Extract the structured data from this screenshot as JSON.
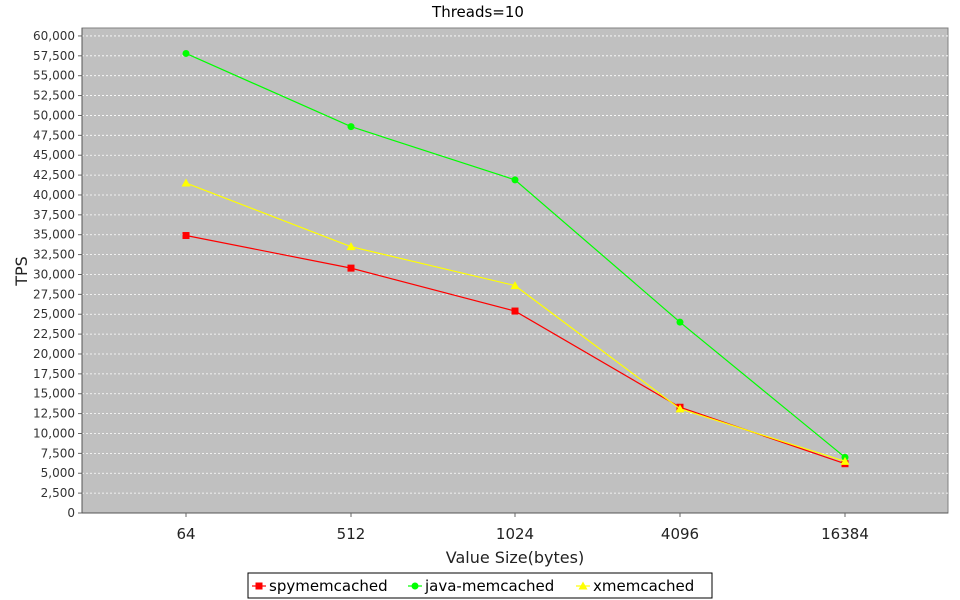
{
  "chart_data": {
    "type": "line",
    "title": "Threads=10",
    "xlabel": "Value Size(bytes)",
    "ylabel": "TPS",
    "categories": [
      "64",
      "512",
      "1024",
      "4096",
      "16384"
    ],
    "ylim": [
      0,
      61000
    ],
    "yticks": [
      0,
      2500,
      5000,
      7500,
      10000,
      12500,
      15000,
      17500,
      20000,
      22500,
      25000,
      27500,
      30000,
      32500,
      35000,
      37500,
      40000,
      42500,
      45000,
      47500,
      50000,
      52500,
      55000,
      57500,
      60000
    ],
    "ytick_labels": [
      "0",
      "2,500",
      "5,000",
      "7,500",
      "10,000",
      "12,500",
      "15,000",
      "17,500",
      "20,000",
      "22,500",
      "25,000",
      "27,500",
      "30,000",
      "32,500",
      "35,000",
      "37,500",
      "40,000",
      "42,500",
      "45,000",
      "47,500",
      "50,000",
      "52,500",
      "55,000",
      "57,500",
      "60,000"
    ],
    "grid": true,
    "legend_position": "bottom",
    "plot_background": "#c0c0c0",
    "series": [
      {
        "name": "spymemcached",
        "color": "#ff0000",
        "marker": "square",
        "values": [
          34900,
          30800,
          25400,
          13300,
          6200
        ]
      },
      {
        "name": "java-memcached",
        "color": "#00ff00",
        "marker": "circle",
        "values": [
          57800,
          48600,
          41900,
          24000,
          7000
        ]
      },
      {
        "name": "xmemcached",
        "color": "#ffff00",
        "marker": "triangle",
        "values": [
          41500,
          33500,
          28600,
          13100,
          6500
        ]
      }
    ]
  }
}
